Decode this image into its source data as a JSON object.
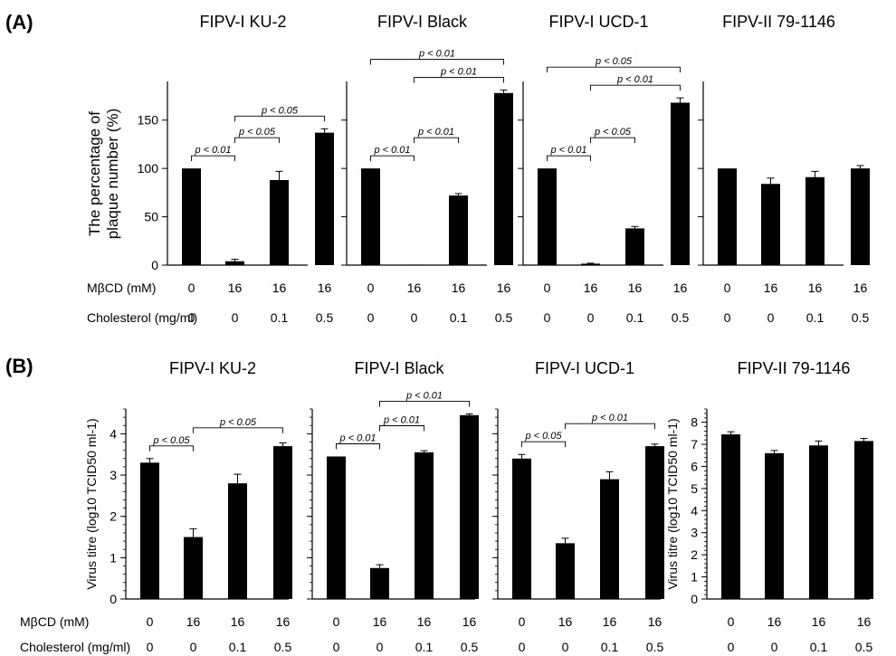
{
  "panels": [
    {
      "label": "(A)",
      "ylabel_lines": [
        "The percentage of",
        "plaque number (%)"
      ],
      "ylim": [
        0,
        190
      ],
      "yticks": [
        0,
        50,
        100,
        150
      ],
      "row_labels": [
        "MβCD (mM)",
        "Cholesterol (mg/ml)"
      ],
      "row_values": [
        [
          "0",
          "16",
          "16",
          "16"
        ],
        [
          "0",
          "0",
          "0.1",
          "0.5"
        ]
      ]
    },
    {
      "label": "(B)",
      "ylabel": "Virus titre (log10 TCID50 ml-1)",
      "row_labels": [
        "MβCD (mM)",
        "Cholesterol (mg/ml)"
      ],
      "row_values": [
        [
          "0",
          "16",
          "16",
          "16"
        ],
        [
          "0",
          "0",
          "0.1",
          "0.5"
        ]
      ]
    }
  ],
  "chart_data": [
    {
      "type": "bar",
      "panel": "A",
      "title": "FIPV-I KU-2",
      "categories": [
        "0/0",
        "16/0",
        "16/0.1",
        "16/0.5"
      ],
      "values": [
        100,
        4,
        88,
        137
      ],
      "errors": [
        0,
        2,
        9,
        4
      ],
      "ylabel": "The percentage of plaque number (%)",
      "ylim": [
        0,
        190
      ],
      "significance": [
        {
          "from": 0,
          "to": 1,
          "label": "p < 0.01"
        },
        {
          "from": 1,
          "to": 2,
          "label": "p < 0.05"
        },
        {
          "from": 1,
          "to": 3,
          "label": "p < 0.05"
        }
      ]
    },
    {
      "type": "bar",
      "panel": "A",
      "title": "FIPV-I Black",
      "categories": [
        "0/0",
        "16/0",
        "16/0.1",
        "16/0.5"
      ],
      "values": [
        100,
        0.5,
        72,
        178
      ],
      "errors": [
        0,
        0,
        2,
        3
      ],
      "ylim": [
        0,
        190
      ],
      "significance": [
        {
          "from": 0,
          "to": 1,
          "label": "p < 0.01"
        },
        {
          "from": 1,
          "to": 2,
          "label": "p < 0.01"
        },
        {
          "from": 1,
          "to": 3,
          "label": "p < 0.01"
        },
        {
          "from": 0,
          "to": 3,
          "label": "p < 0.01"
        }
      ]
    },
    {
      "type": "bar",
      "panel": "A",
      "title": "FIPV-I UCD-1",
      "categories": [
        "0/0",
        "16/0",
        "16/0.1",
        "16/0.5"
      ],
      "values": [
        100,
        1.5,
        38,
        168
      ],
      "errors": [
        0,
        0.5,
        2,
        5
      ],
      "ylim": [
        0,
        190
      ],
      "significance": [
        {
          "from": 0,
          "to": 1,
          "label": "p < 0.01"
        },
        {
          "from": 1,
          "to": 2,
          "label": "p < 0.05"
        },
        {
          "from": 1,
          "to": 3,
          "label": "p < 0.01"
        },
        {
          "from": 0,
          "to": 3,
          "label": "p < 0.05"
        }
      ]
    },
    {
      "type": "bar",
      "panel": "A",
      "title": "FIPV-II 79-1146",
      "categories": [
        "0/0",
        "16/0",
        "16/0.1",
        "16/0.5"
      ],
      "values": [
        100,
        84,
        91,
        100
      ],
      "errors": [
        0,
        6,
        6,
        3
      ],
      "ylim": [
        0,
        190
      ],
      "significance": []
    },
    {
      "type": "bar",
      "panel": "B",
      "title": "FIPV-I KU-2",
      "categories": [
        "0/0",
        "16/0",
        "16/0.1",
        "16/0.5"
      ],
      "values": [
        3.3,
        1.5,
        2.8,
        3.7
      ],
      "errors": [
        0.1,
        0.2,
        0.22,
        0.08
      ],
      "ylabel": "Virus titre (log10 TCID50 ml-1)",
      "ylim": [
        0,
        4.6
      ],
      "yticks": [
        0,
        1,
        2,
        3,
        4
      ],
      "minor_ticks": 0.2,
      "significance": [
        {
          "from": 0,
          "to": 1,
          "label": "p < 0.05"
        },
        {
          "from": 1,
          "to": 3,
          "label": "p < 0.05"
        }
      ]
    },
    {
      "type": "bar",
      "panel": "B",
      "title": "FIPV-I Black",
      "categories": [
        "0/0",
        "16/0",
        "16/0.1",
        "16/0.5"
      ],
      "values": [
        3.45,
        0.75,
        3.55,
        4.45
      ],
      "errors": [
        0,
        0.08,
        0.04,
        0.03
      ],
      "ylim": [
        0,
        4.6
      ],
      "minor_ticks": 0.2,
      "significance": [
        {
          "from": 0,
          "to": 1,
          "label": "p < 0.01"
        },
        {
          "from": 1,
          "to": 2,
          "label": "p < 0.01"
        },
        {
          "from": 1,
          "to": 3,
          "label": "p < 0.01"
        }
      ]
    },
    {
      "type": "bar",
      "panel": "B",
      "title": "FIPV-I UCD-1",
      "categories": [
        "0/0",
        "16/0",
        "16/0.1",
        "16/0.5"
      ],
      "values": [
        3.4,
        1.35,
        2.9,
        3.7
      ],
      "errors": [
        0.1,
        0.12,
        0.18,
        0.05
      ],
      "ylim": [
        0,
        4.6
      ],
      "minor_ticks": 0.2,
      "significance": [
        {
          "from": 0,
          "to": 1,
          "label": "p < 0.05"
        },
        {
          "from": 1,
          "to": 3,
          "label": "p < 0.01"
        }
      ]
    },
    {
      "type": "bar",
      "panel": "B",
      "title": "FIPV-II 79-1146",
      "categories": [
        "0/0",
        "16/0",
        "16/0.1",
        "16/0.5"
      ],
      "values": [
        7.45,
        6.6,
        6.95,
        7.15
      ],
      "errors": [
        0.12,
        0.12,
        0.2,
        0.12
      ],
      "ylabel": "Virus titre (log10 TCID50 ml-1)",
      "ylim": [
        0,
        8.6
      ],
      "yticks": [
        0,
        1,
        2,
        3,
        4,
        5,
        6,
        7,
        8
      ],
      "minor_ticks": 0.2,
      "significance": []
    }
  ]
}
